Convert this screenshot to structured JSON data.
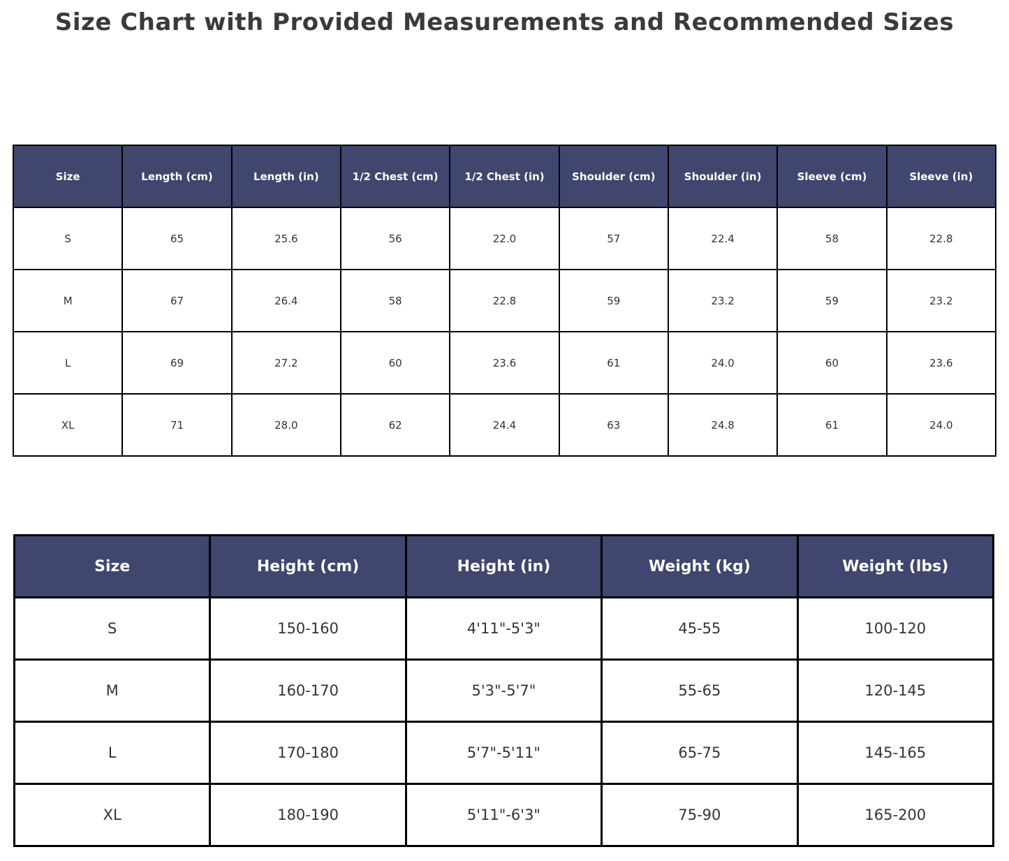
{
  "title": "Size Chart with Provided Measurements and Recommended Sizes",
  "colors": {
    "header_bg": "#40466e",
    "header_text": "#ffffff",
    "cell_bg": "#ffffff",
    "cell_text": "#333333",
    "border": "#000000",
    "title_text": "#3a3a3a"
  },
  "chart_data": [
    {
      "type": "table",
      "name": "provided_measurements",
      "columns": [
        "Size",
        "Length (cm)",
        "Length (in)",
        "1/2 Chest (cm)",
        "1/2 Chest (in)",
        "Shoulder (cm)",
        "Shoulder (in)",
        "Sleeve (cm)",
        "Sleeve (in)"
      ],
      "rows": [
        [
          "S",
          "65",
          "25.6",
          "56",
          "22.0",
          "57",
          "22.4",
          "58",
          "22.8"
        ],
        [
          "M",
          "67",
          "26.4",
          "58",
          "22.8",
          "59",
          "23.2",
          "59",
          "23.2"
        ],
        [
          "L",
          "69",
          "27.2",
          "60",
          "23.6",
          "61",
          "24.0",
          "60",
          "23.6"
        ],
        [
          "XL",
          "71",
          "28.0",
          "62",
          "24.4",
          "63",
          "24.8",
          "61",
          "24.0"
        ]
      ]
    },
    {
      "type": "table",
      "name": "recommended_sizes",
      "columns": [
        "Size",
        "Height (cm)",
        "Height (in)",
        "Weight (kg)",
        "Weight (lbs)"
      ],
      "rows": [
        [
          "S",
          "150-160",
          "4'11\"-5'3\"",
          "45-55",
          "100-120"
        ],
        [
          "M",
          "160-170",
          "5'3\"-5'7\"",
          "55-65",
          "120-145"
        ],
        [
          "L",
          "170-180",
          "5'7\"-5'11\"",
          "65-75",
          "145-165"
        ],
        [
          "XL",
          "180-190",
          "5'11\"-6'3\"",
          "75-90",
          "165-200"
        ]
      ]
    }
  ]
}
